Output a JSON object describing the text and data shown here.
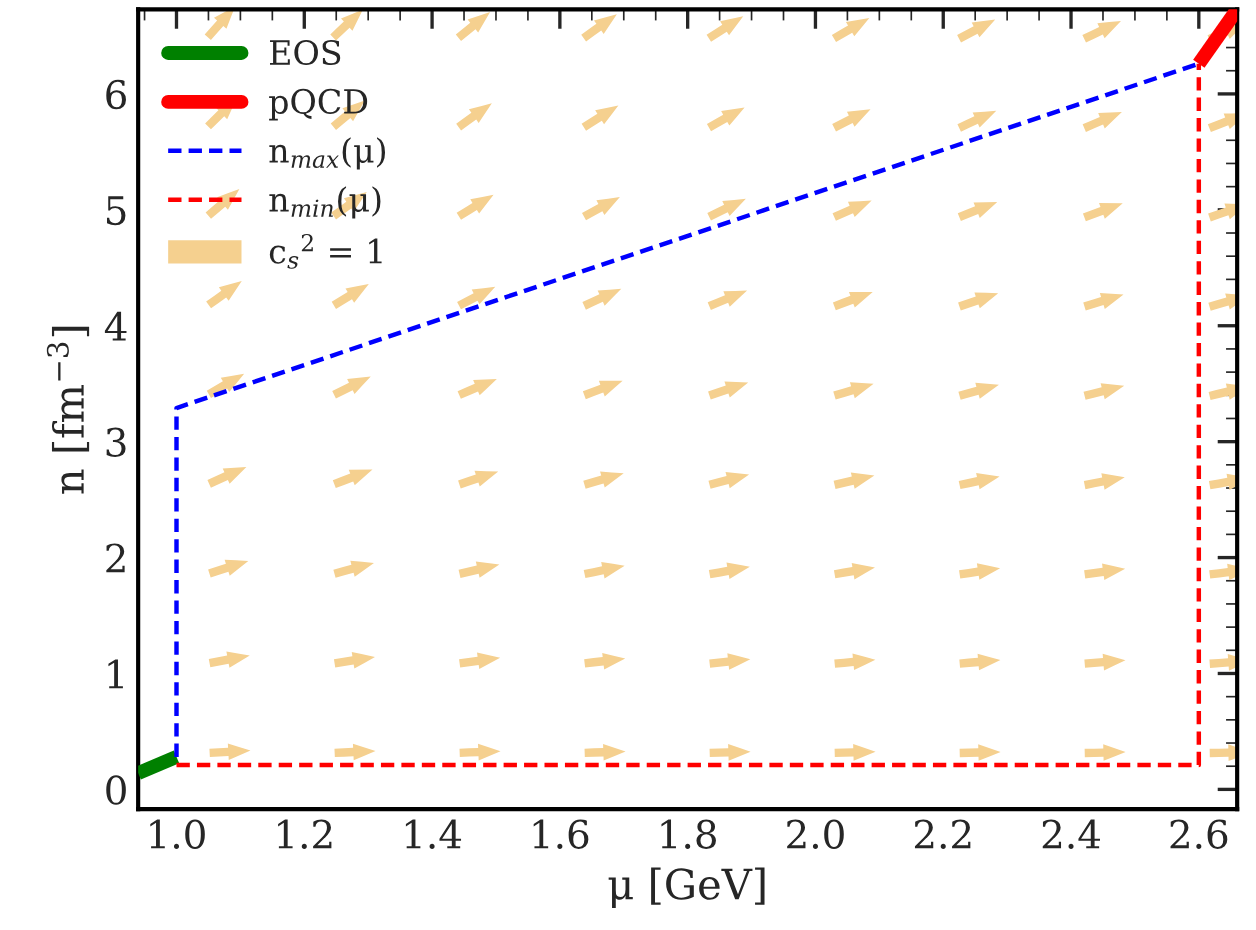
{
  "chart_data": {
    "type": "line",
    "xlabel": "μ [GeV]",
    "ylabel": "n [fm$^{−3}$]",
    "xlim": [
      0.94,
      2.66
    ],
    "ylim": [
      -0.17,
      6.73
    ],
    "xticks": [
      {
        "value": 1.0,
        "label": "1.0"
      },
      {
        "value": 1.2,
        "label": "1.2"
      },
      {
        "value": 1.4,
        "label": "1.4"
      },
      {
        "value": 1.6,
        "label": "1.6"
      },
      {
        "value": 1.8,
        "label": "1.8"
      },
      {
        "value": 2.0,
        "label": "2.0"
      },
      {
        "value": 2.2,
        "label": "2.2"
      },
      {
        "value": 2.4,
        "label": "2.4"
      },
      {
        "value": 2.6,
        "label": "2.6"
      }
    ],
    "yticks": [
      0,
      1,
      2,
      3,
      4,
      5,
      6
    ],
    "legend": "top left",
    "grid": false,
    "series": [
      {
        "name": "EOS",
        "color": "#008000",
        "line_style": "solid",
        "x": [
          0.94,
          1.0
        ],
        "values": [
          0.14,
          0.28
        ]
      },
      {
        "name": "pQCD",
        "color": "#ff0000",
        "line_style": "solid",
        "x": [
          2.6,
          2.66
        ],
        "values": [
          6.26,
          6.73
        ]
      },
      {
        "name": "n$_{max}$(μ)",
        "color": "#0000ff",
        "line_style": "dashed",
        "x": [
          1.0,
          1.0,
          2.6
        ],
        "values": [
          0.28,
          3.29,
          6.26
        ]
      },
      {
        "name": "n$_{min}$(μ)",
        "color": "#ff0000",
        "line_style": "dashed",
        "x": [
          1.0,
          2.6,
          2.6
        ],
        "values": [
          0.21,
          0.21,
          6.26
        ]
      },
      {
        "name": "c$_{s}$$^{2}$ = 1",
        "color": "#f5d08f",
        "type": "other"
      }
    ]
  }
}
